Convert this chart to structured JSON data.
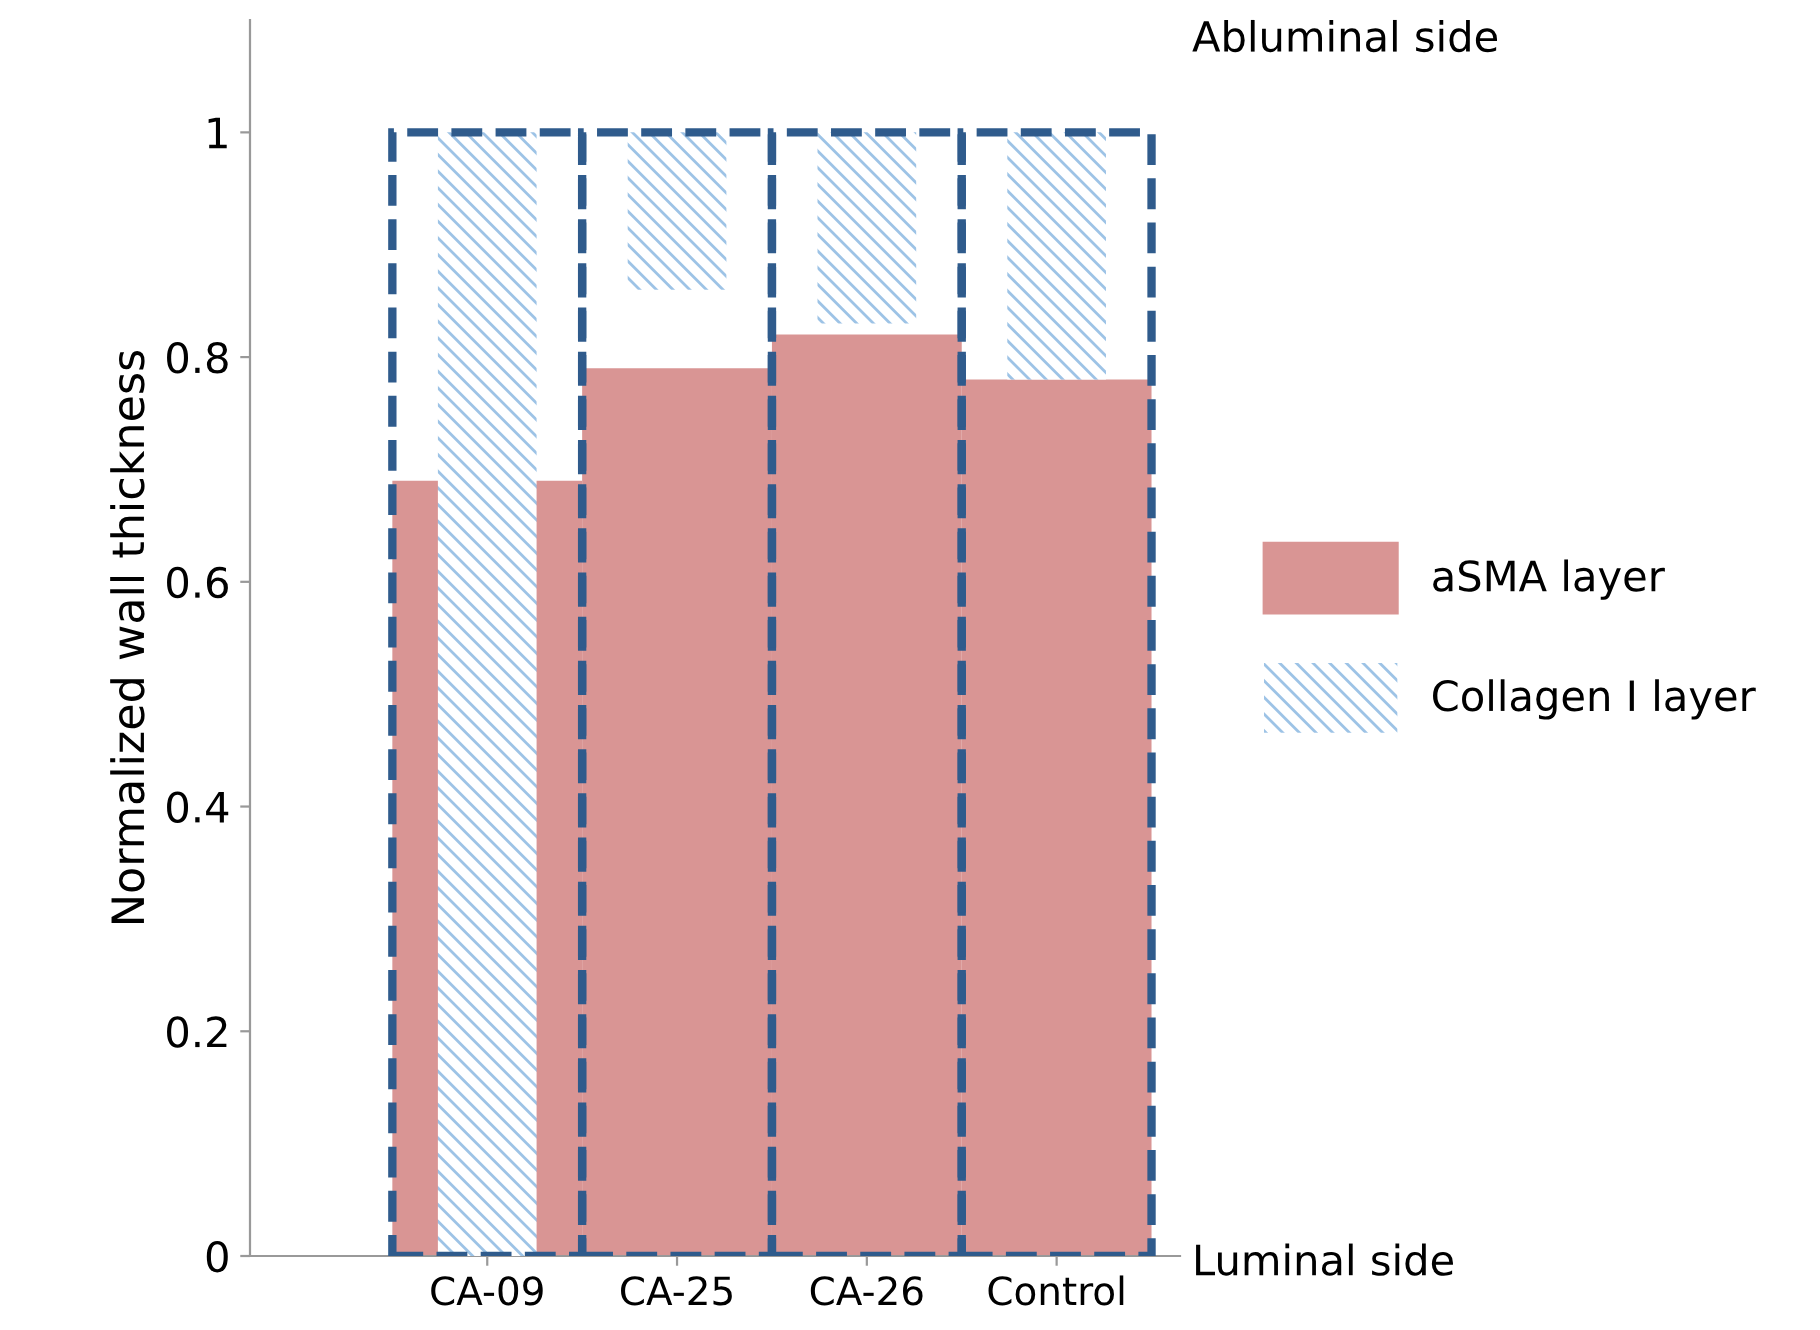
{
  "chart_data": {
    "type": "bar",
    "ylabel": "Normalized wall thickness",
    "categories": [
      "CA-09",
      "CA-25",
      "CA-26",
      "Control"
    ],
    "series": [
      {
        "color": "#2f5b8c",
        "line_style": "dashed",
        "values": [
          1,
          1,
          1,
          1
        ]
      },
      {
        "name": "aSMA layer",
        "color": "#d99594",
        "values": [
          0.69,
          0.79,
          0.82,
          0.78
        ]
      },
      {
        "name": "Collagen I layer",
        "color": "#9dc3e6",
        "base": [
          0,
          0.86,
          0.83,
          0.78
        ],
        "values": [
          1,
          0.14,
          0.17,
          0.22
        ]
      }
    ],
    "ylim": [
      0,
      1.1
    ],
    "yticks": [
      0,
      0.2,
      0.4,
      0.6,
      0.8,
      1
    ],
    "annotations": [
      "Abluminal side",
      "Luminal side"
    ],
    "legend": "right",
    "grid": false
  }
}
